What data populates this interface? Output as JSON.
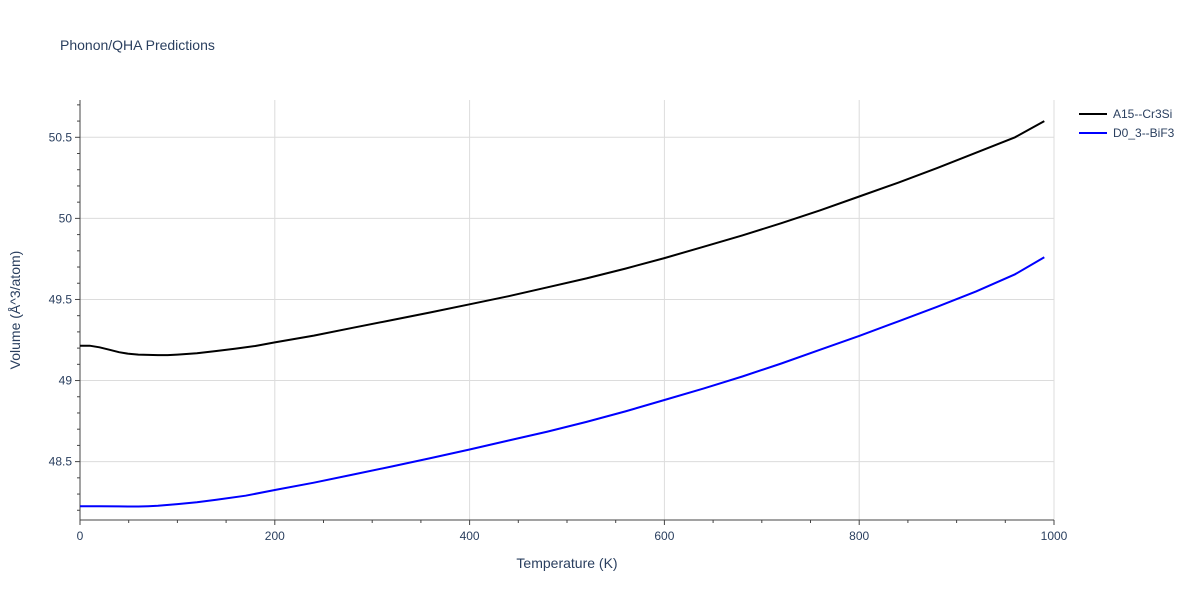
{
  "chart_data": {
    "type": "line",
    "title": "Phonon/QHA Predictions",
    "xlabel": "Temperature (K)",
    "ylabel": "Volume (Å^3/atom)",
    "xlim": [
      0,
      1000
    ],
    "ylim": [
      48.14,
      50.73
    ],
    "xticks": [
      0,
      200,
      400,
      600,
      800,
      1000
    ],
    "xtick_labels": [
      "0",
      "200",
      "400",
      "600",
      "800",
      "1000"
    ],
    "yticks": [
      48.5,
      49,
      49.5,
      50,
      50.5
    ],
    "ytick_labels": [
      "48.5",
      "49",
      "49.5",
      "50",
      "50.5"
    ],
    "grid": true,
    "legend_position": "top-right, outside plot",
    "series": [
      {
        "name": "A15--Cr3Si",
        "color": "#000000",
        "x": [
          0,
          10,
          20,
          30,
          40,
          50,
          60,
          70,
          80,
          90,
          100,
          120,
          140,
          160,
          180,
          200,
          240,
          280,
          320,
          360,
          400,
          440,
          480,
          520,
          560,
          600,
          640,
          680,
          720,
          760,
          800,
          840,
          880,
          920,
          960,
          990
        ],
        "y": [
          49.215,
          49.215,
          49.205,
          49.19,
          49.175,
          49.165,
          49.16,
          49.158,
          49.157,
          49.157,
          49.16,
          49.168,
          49.182,
          49.197,
          49.213,
          49.235,
          49.277,
          49.325,
          49.373,
          49.42,
          49.47,
          49.52,
          49.575,
          49.63,
          49.69,
          49.755,
          49.825,
          49.895,
          49.97,
          50.05,
          50.135,
          50.22,
          50.31,
          50.405,
          50.5,
          50.6
        ]
      },
      {
        "name": "D0_3--BiF3",
        "color": "#0000ff",
        "x": [
          0,
          20,
          40,
          60,
          70,
          80,
          100,
          120,
          140,
          170,
          200,
          240,
          280,
          320,
          360,
          400,
          440,
          480,
          520,
          560,
          600,
          640,
          680,
          720,
          760,
          800,
          840,
          880,
          920,
          960,
          990
        ],
        "y": [
          48.225,
          48.225,
          48.224,
          48.223,
          48.225,
          48.228,
          48.238,
          48.25,
          48.265,
          48.29,
          48.325,
          48.37,
          48.42,
          48.47,
          48.522,
          48.575,
          48.63,
          48.685,
          48.745,
          48.81,
          48.88,
          48.95,
          49.025,
          49.105,
          49.19,
          49.275,
          49.365,
          49.455,
          49.55,
          49.655,
          49.76
        ]
      }
    ]
  }
}
